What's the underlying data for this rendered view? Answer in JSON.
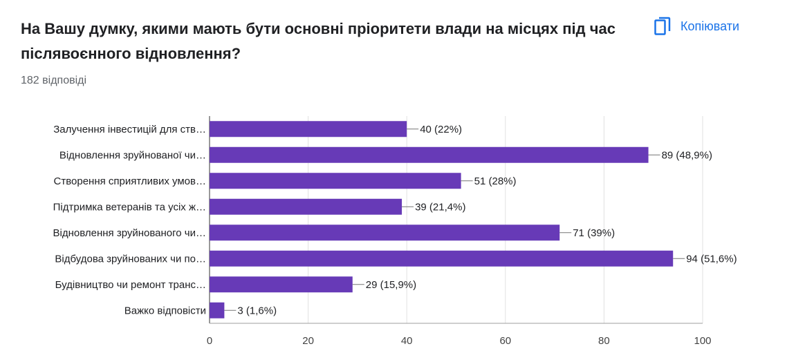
{
  "header": {
    "title": "На Вашу думку, якими мають бути основні пріоритети влади на місцях під час післявоєнного відновлення?",
    "responses": "182 відповіді",
    "copy_label": "Копіювати",
    "copy_icon": "copy-icon"
  },
  "colors": {
    "bar": "#673ab7",
    "grid": "#e0e0e0",
    "accent": "#1a73e8"
  },
  "chart_data": {
    "type": "bar",
    "orientation": "horizontal",
    "title": "",
    "xlabel": "",
    "ylabel": "",
    "xlim": [
      0,
      100
    ],
    "x_ticks": [
      0,
      20,
      40,
      60,
      80,
      100
    ],
    "grid": true,
    "categories": [
      "Залучення інвестицій для ств…",
      "Відновлення зруйнованої чи…",
      "Створення сприятливих умов…",
      "Підтримка ветеранів та усіх ж…",
      "Відновлення зруйнованого чи…",
      "Відбудова зруйнованих чи по…",
      "Будівництво чи ремонт транс…",
      "Важко відповісти"
    ],
    "values": [
      40,
      89,
      51,
      39,
      71,
      94,
      29,
      3
    ],
    "data_labels": [
      "40 (22%)",
      "89 (48,9%)",
      "51 (28%)",
      "39 (21,4%)",
      "71 (39%)",
      "94 (51,6%)",
      "29 (15,9%)",
      "3 (1,6%)"
    ]
  }
}
